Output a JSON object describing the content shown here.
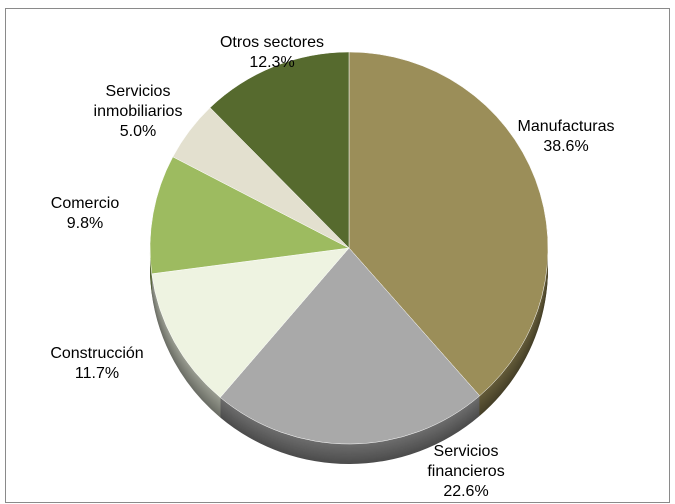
{
  "chart_data": {
    "type": "pie",
    "categories": [
      "Manufacturas",
      "Servicios financieros",
      "Construcción",
      "Comercio",
      "Servicios inmobiliarios",
      "Otros sectores"
    ],
    "values": [
      38.6,
      22.6,
      11.7,
      9.8,
      5.0,
      12.3
    ],
    "value_labels": [
      "38.6%",
      "22.6%",
      "11.7%",
      "9.8%",
      "5.0%",
      "12.3%"
    ],
    "colors": [
      "#9b8e59",
      "#a9a9a9",
      "#eef3e1",
      "#9dbb60",
      "#e3e0cf",
      "#566a2e"
    ]
  }
}
